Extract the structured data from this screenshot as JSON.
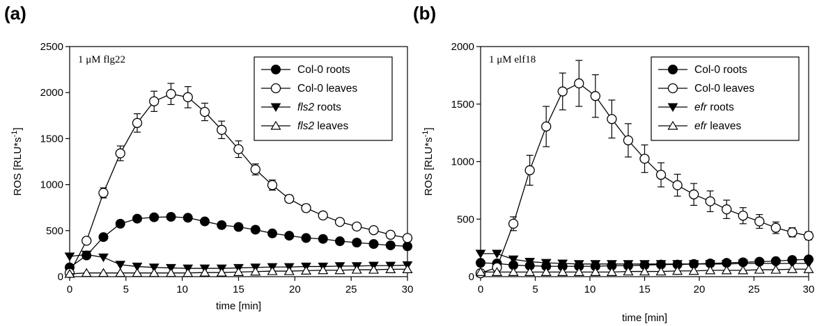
{
  "chart_data": [
    {
      "type": "line",
      "panel_label": "(a)",
      "annotation": "1 μM flg22",
      "xlabel": "time [min]",
      "ylabel": "ROS [RLU*s-1]",
      "ylabel_main": "ROS [RLU*s",
      "ylabel_sup": "-1",
      "ylabel_close": "]",
      "xlim": [
        0,
        30
      ],
      "ylim": [
        0,
        2500
      ],
      "xticks": [
        "0",
        "5",
        "10",
        "15",
        "20",
        "25",
        "30"
      ],
      "yticks": [
        "0",
        "500",
        "1000",
        "1500",
        "2000",
        "2500"
      ],
      "legend_position": "top-right",
      "x": [
        0,
        1.5,
        3,
        4.5,
        6,
        7.5,
        9,
        10.5,
        12,
        13.5,
        15,
        16.5,
        18,
        19.5,
        21,
        22.5,
        24,
        25.5,
        27,
        28.5,
        30
      ],
      "series": [
        {
          "name": "Col-0 roots",
          "legend_prefix": "Col-0 roots",
          "legend_italic": "",
          "legend_suffix": "",
          "marker": "filled-circle",
          "values": [
            100,
            230,
            430,
            575,
            630,
            645,
            650,
            640,
            600,
            560,
            540,
            510,
            470,
            445,
            420,
            410,
            385,
            370,
            355,
            340,
            330
          ],
          "errors": [
            0,
            0,
            25,
            30,
            30,
            30,
            30,
            30,
            25,
            25,
            20,
            20,
            20,
            20,
            20,
            20,
            20,
            20,
            20,
            20,
            20
          ]
        },
        {
          "name": "Col-0 leaves",
          "legend_prefix": "Col-0 leaves",
          "legend_italic": "",
          "legend_suffix": "",
          "marker": "open-circle",
          "values": [
            40,
            390,
            910,
            1340,
            1670,
            1905,
            1985,
            1950,
            1790,
            1595,
            1385,
            1165,
            995,
            845,
            745,
            665,
            595,
            545,
            505,
            455,
            420
          ],
          "errors": [
            0,
            0,
            55,
            80,
            100,
            110,
            115,
            115,
            95,
            95,
            90,
            60,
            55,
            40,
            40,
            35,
            35,
            30,
            30,
            30,
            30
          ]
        },
        {
          "name": "fls2 roots",
          "legend_prefix": "",
          "legend_italic": "fls2",
          "legend_suffix": " roots",
          "marker": "filled-triangle-down",
          "values": [
            220,
            240,
            210,
            130,
            110,
            100,
            95,
            90,
            90,
            90,
            95,
            100,
            105,
            105,
            110,
            110,
            115,
            115,
            120,
            120,
            125
          ],
          "errors": [
            0,
            0,
            0,
            0,
            0,
            0,
            0,
            0,
            0,
            0,
            0,
            0,
            0,
            0,
            0,
            0,
            0,
            0,
            0,
            0,
            0
          ]
        },
        {
          "name": "fls2 leaves",
          "legend_prefix": "",
          "legend_italic": "fls2",
          "legend_suffix": " leaves",
          "marker": "open-triangle-up",
          "values": [
            30,
            40,
            40,
            40,
            40,
            40,
            40,
            40,
            45,
            45,
            50,
            55,
            60,
            60,
            65,
            70,
            70,
            75,
            75,
            80,
            80
          ],
          "errors": [
            0,
            0,
            0,
            0,
            0,
            0,
            0,
            0,
            0,
            0,
            0,
            0,
            0,
            0,
            0,
            0,
            0,
            0,
            0,
            0,
            0
          ]
        }
      ]
    },
    {
      "type": "line",
      "panel_label": "(b)",
      "annotation": "1 μM elf18",
      "xlabel": "time [min]",
      "ylabel": "ROS [RLU*s-1]",
      "ylabel_main": "ROS [RLU*s",
      "ylabel_sup": "-1",
      "ylabel_close": "]",
      "xlim": [
        0,
        30
      ],
      "ylim": [
        0,
        2000
      ],
      "xticks": [
        "0",
        "5",
        "10",
        "15",
        "20",
        "25",
        "30"
      ],
      "yticks": [
        "0",
        "500",
        "1000",
        "1500",
        "2000"
      ],
      "legend_position": "top-right",
      "x": [
        0,
        1.5,
        3,
        4.5,
        6,
        7.5,
        9,
        10.5,
        12,
        13.5,
        15,
        16.5,
        18,
        19.5,
        21,
        22.5,
        24,
        25.5,
        27,
        28.5,
        30
      ],
      "series": [
        {
          "name": "Col-0 roots",
          "legend_prefix": "Col-0 roots",
          "legend_italic": "",
          "legend_suffix": "",
          "marker": "filled-circle",
          "values": [
            120,
            115,
            100,
            95,
            90,
            90,
            90,
            90,
            95,
            95,
            100,
            105,
            105,
            110,
            115,
            120,
            125,
            130,
            135,
            145,
            150
          ],
          "errors": [
            0,
            0,
            0,
            0,
            0,
            0,
            0,
            0,
            0,
            0,
            0,
            0,
            0,
            0,
            0,
            0,
            0,
            0,
            0,
            0,
            0
          ]
        },
        {
          "name": "Col-0 leaves",
          "legend_prefix": "Col-0 leaves",
          "legend_italic": "",
          "legend_suffix": "",
          "marker": "open-circle",
          "values": [
            30,
            80,
            460,
            925,
            1305,
            1610,
            1680,
            1570,
            1370,
            1185,
            1025,
            885,
            795,
            715,
            655,
            585,
            530,
            480,
            425,
            385,
            355
          ],
          "errors": [
            0,
            0,
            60,
            130,
            175,
            160,
            200,
            185,
            165,
            145,
            120,
            105,
            95,
            95,
            90,
            80,
            70,
            60,
            50,
            40,
            35
          ]
        },
        {
          "name": "efr roots",
          "legend_prefix": "",
          "legend_italic": "efr",
          "legend_suffix": " roots",
          "marker": "filled-triangle-down",
          "values": [
            200,
            200,
            150,
            130,
            120,
            115,
            110,
            110,
            110,
            110,
            110,
            110,
            110,
            110,
            110,
            110,
            115,
            115,
            115,
            115,
            115
          ],
          "errors": [
            0,
            0,
            0,
            0,
            0,
            0,
            0,
            0,
            0,
            0,
            0,
            0,
            0,
            0,
            0,
            0,
            0,
            0,
            0,
            0,
            0
          ]
        },
        {
          "name": "efr leaves",
          "legend_prefix": "",
          "legend_italic": "efr",
          "legend_suffix": " leaves",
          "marker": "open-triangle-up",
          "values": [
            40,
            40,
            40,
            40,
            40,
            40,
            40,
            40,
            40,
            45,
            45,
            45,
            50,
            50,
            55,
            55,
            55,
            60,
            60,
            65,
            65
          ],
          "errors": [
            0,
            0,
            0,
            0,
            0,
            0,
            0,
            0,
            0,
            0,
            0,
            0,
            0,
            0,
            0,
            0,
            0,
            0,
            0,
            0,
            0
          ]
        }
      ]
    }
  ]
}
